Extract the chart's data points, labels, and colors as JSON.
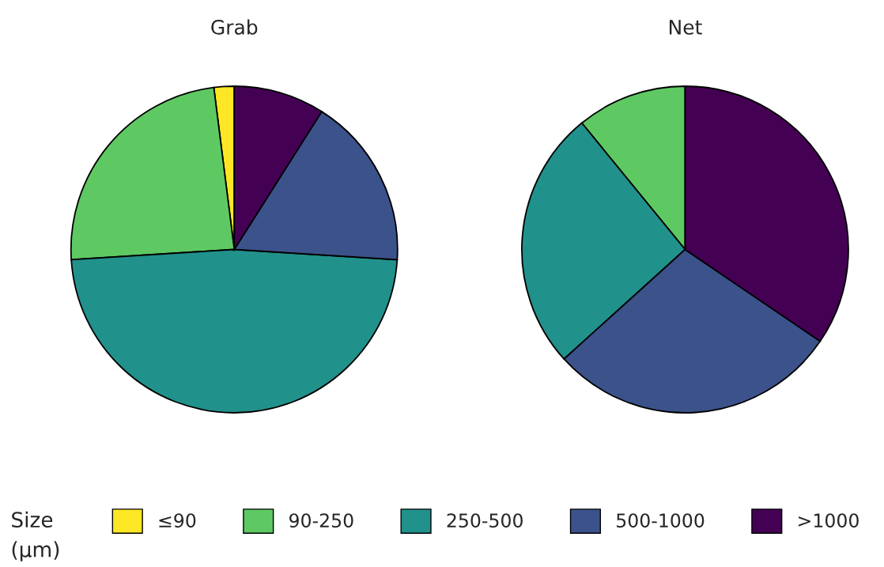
{
  "chart_data": [
    {
      "type": "pie",
      "title": "Grab",
      "categories": [
        "≤90",
        "90-250",
        "250-500",
        "500-1000",
        ">1000"
      ],
      "values": [
        2,
        24,
        48,
        17,
        9
      ],
      "colors": [
        "#fde725",
        "#5ec962",
        "#21918c",
        "#3b528b",
        "#440154"
      ],
      "legend": "bottom",
      "legend_title": "Size\n(μm)"
    },
    {
      "type": "pie",
      "title": "Net",
      "categories": [
        null,
        null,
        null,
        null
      ],
      "values": [
        10.9,
        25.8,
        28.8,
        34.5
      ],
      "colors": [
        "#5ec962",
        "#21918c",
        "#3b528b",
        "#440154"
      ]
    }
  ]
}
